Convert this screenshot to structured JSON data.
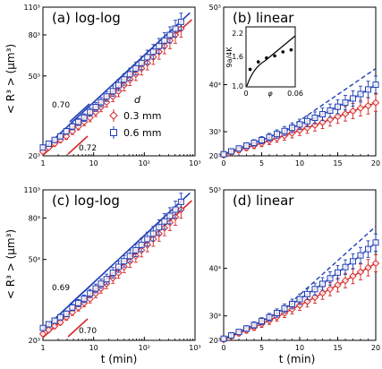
{
  "figure": {
    "shared_ylabel": "< R³ > (μm³)",
    "shared_xlabel": "t (min)",
    "legend": {
      "title": "d",
      "entries": [
        "0.3 mm",
        "0.6 mm"
      ]
    },
    "inset": {
      "ylabel": "9a/4K",
      "xlabel": "φ",
      "yticks": [
        "1.0",
        "1.6",
        "2.2"
      ],
      "xticks": [
        "0",
        "0.06"
      ]
    }
  },
  "chart_data": [
    {
      "id": "a",
      "type": "scatter",
      "title": "(a) log-log",
      "xscale": "log",
      "yscale": "log",
      "xlim": [
        1,
        1000
      ],
      "ylim": [
        20,
        110
      ],
      "xticks": [
        "1",
        "10",
        "10²",
        "10³"
      ],
      "yticks": [
        "20³",
        "50³",
        "80³",
        "110³"
      ],
      "series": [
        {
          "name": "0.3 mm",
          "color": "#d62728",
          "marker": "diamond",
          "x": [
            1.0,
            1.3,
            1.7,
            2.2,
            2.9,
            3.8,
            5.0,
            6.5,
            8.5,
            11,
            14,
            18,
            24,
            31,
            40,
            52,
            68,
            88,
            115,
            150,
            195,
            250,
            320,
            410,
            530
          ],
          "y": [
            21,
            22,
            23,
            24,
            25,
            26.5,
            28,
            29.5,
            31,
            33,
            35,
            37,
            39.5,
            42,
            45,
            48,
            51,
            54.5,
            58,
            62,
            66,
            70.5,
            75,
            80,
            86
          ]
        },
        {
          "name": "0.6 mm",
          "color": "#1f3fb4",
          "marker": "square",
          "x": [
            1.0,
            1.3,
            1.7,
            2.2,
            2.9,
            3.8,
            5.0,
            6.5,
            8.5,
            11,
            14,
            18,
            24,
            31,
            40,
            52,
            68,
            88,
            115,
            150,
            195,
            250,
            320,
            410,
            530
          ],
          "y": [
            22,
            23,
            24,
            25,
            26.5,
            28,
            29.5,
            31,
            33,
            35,
            37,
            39.5,
            42,
            45,
            48,
            51,
            54.5,
            58,
            62,
            66,
            70.5,
            75,
            80,
            86,
            93
          ]
        }
      ],
      "fit_lines": [
        {
          "color": "#1f3fb4",
          "slope_label": "0.70"
        },
        {
          "color": "#d62728",
          "slope_label": "0.72"
        }
      ]
    },
    {
      "id": "b",
      "type": "scatter",
      "title": "(b) linear",
      "xlim": [
        0,
        20
      ],
      "ylim": [
        20,
        50
      ],
      "xticks": [
        "0",
        "5",
        "10",
        "15",
        "20"
      ],
      "yticks": [
        "20³",
        "30³",
        "40³",
        "50³"
      ],
      "series": [
        {
          "name": "0.3 mm",
          "color": "#d62728",
          "marker": "diamond",
          "x": [
            0,
            1,
            2,
            3,
            4,
            5,
            6,
            7,
            8,
            9,
            10,
            11,
            12,
            13,
            14,
            15,
            16,
            17,
            18,
            19,
            20
          ],
          "y": [
            20.5,
            22,
            23.2,
            24.3,
            25.3,
            26.2,
            27.1,
            28,
            28.8,
            29.6,
            30.4,
            31.1,
            31.8,
            32.5,
            33.2,
            33.9,
            34.5,
            35.1,
            35.7,
            36.2,
            36.8
          ]
        },
        {
          "name": "0.6 mm",
          "color": "#1f3fb4",
          "marker": "square",
          "x": [
            0,
            1,
            2,
            3,
            4,
            5,
            6,
            7,
            8,
            9,
            10,
            11,
            12,
            13,
            14,
            15,
            16,
            17,
            18,
            19,
            20
          ],
          "y": [
            21,
            22.6,
            24,
            25.2,
            26.3,
            27.3,
            28.3,
            29.3,
            30.2,
            31.1,
            32,
            32.8,
            33.6,
            34.4,
            35.2,
            36,
            36.8,
            37.6,
            38.4,
            39.2,
            40
          ]
        }
      ],
      "inset_data": {
        "phi": [
          0.005,
          0.015,
          0.025,
          0.035,
          0.045,
          0.055
        ],
        "values": [
          1.35,
          1.5,
          1.58,
          1.62,
          1.7,
          1.74
        ]
      }
    },
    {
      "id": "c",
      "type": "scatter",
      "title": "(c) log-log",
      "xscale": "log",
      "yscale": "log",
      "xlim": [
        1,
        1000
      ],
      "ylim": [
        20,
        110
      ],
      "xticks": [
        "1",
        "10",
        "10²",
        "10³"
      ],
      "yticks": [
        "20³",
        "50³",
        "80³",
        "110³"
      ],
      "series": [
        {
          "name": "0.3 mm",
          "color": "#d62728",
          "marker": "diamond",
          "x": [
            1.0,
            1.3,
            1.7,
            2.2,
            2.9,
            3.8,
            5.0,
            6.5,
            8.5,
            11,
            14,
            18,
            24,
            31,
            40,
            52,
            68,
            88,
            115,
            150,
            195,
            250,
            320,
            410,
            530
          ],
          "y": [
            21.5,
            22.5,
            23.5,
            24.5,
            26,
            27.5,
            29,
            30.5,
            32,
            34,
            36,
            38,
            40.5,
            43,
            46,
            49,
            52,
            55.5,
            59,
            63,
            67,
            71.5,
            76,
            81,
            88
          ]
        },
        {
          "name": "0.6 mm",
          "color": "#1f3fb4",
          "marker": "square",
          "x": [
            1.0,
            1.3,
            1.7,
            2.2,
            2.9,
            3.8,
            5.0,
            6.5,
            8.5,
            11,
            14,
            18,
            24,
            31,
            40,
            52,
            68,
            88,
            115,
            150,
            195,
            250,
            320,
            410,
            530
          ],
          "y": [
            23,
            24,
            25,
            26,
            27,
            29,
            30.5,
            32,
            34,
            36,
            38,
            40,
            43,
            46,
            49,
            52,
            55.5,
            59,
            63,
            67,
            72,
            77,
            82,
            88,
            96
          ]
        }
      ],
      "fit_lines": [
        {
          "color": "#1f3fb4",
          "slope_label": "0.69"
        },
        {
          "color": "#d62728",
          "slope_label": "0.70"
        }
      ]
    },
    {
      "id": "d",
      "type": "scatter",
      "title": "(d) linear",
      "xlim": [
        0,
        20
      ],
      "ylim": [
        20,
        50
      ],
      "xticks": [
        "0",
        "5",
        "10",
        "15",
        "20"
      ],
      "yticks": [
        "20³",
        "30³",
        "40³",
        "50³"
      ],
      "series": [
        {
          "name": "0.3 mm",
          "color": "#d62728",
          "marker": "diamond",
          "x": [
            0,
            1,
            2,
            3,
            4,
            5,
            6,
            7,
            8,
            9,
            10,
            11,
            12,
            13,
            14,
            15,
            16,
            17,
            18,
            19,
            20
          ],
          "y": [
            20.5,
            22.3,
            23.8,
            25.1,
            26.3,
            27.5,
            28.6,
            29.7,
            30.8,
            31.8,
            32.8,
            33.7,
            34.6,
            35.5,
            36.3,
            37.1,
            37.9,
            38.7,
            39.4,
            40.1,
            40.8
          ]
        },
        {
          "name": "0.6 mm",
          "color": "#1f3fb4",
          "marker": "square",
          "x": [
            0,
            1,
            2,
            3,
            4,
            5,
            6,
            7,
            8,
            9,
            10,
            11,
            12,
            13,
            14,
            15,
            16,
            17,
            18,
            19,
            20
          ],
          "y": [
            21,
            22.8,
            24.4,
            25.8,
            27.1,
            28.4,
            29.6,
            30.8,
            32,
            33.1,
            34.2,
            35.3,
            36.3,
            37.3,
            38.3,
            39.3,
            40.2,
            41.1,
            42,
            42.9,
            43.8
          ]
        }
      ]
    }
  ]
}
